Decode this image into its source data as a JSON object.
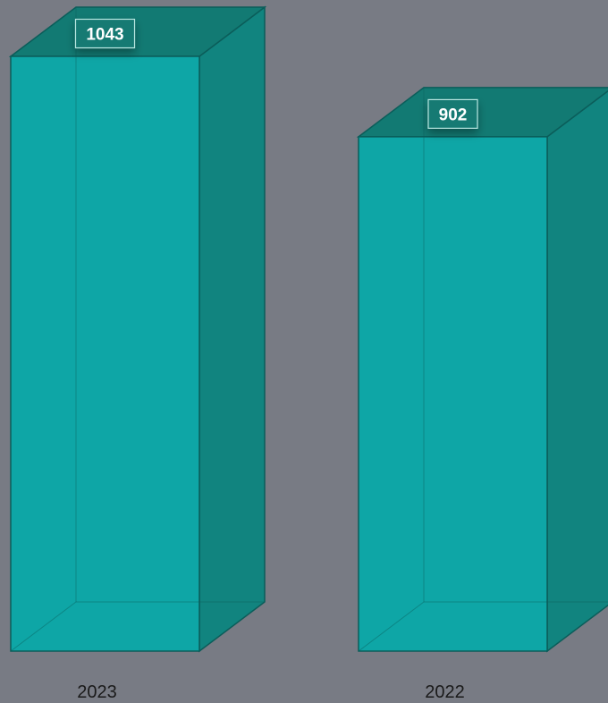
{
  "chart_data": {
    "type": "bar",
    "style": "3d-box",
    "categories": [
      "2023",
      "2022"
    ],
    "values": [
      1043,
      902
    ],
    "title": "",
    "xlabel": "",
    "ylabel": "",
    "ylim": [
      0,
      1043
    ],
    "grid": false,
    "data_labels": true
  },
  "colors": {
    "background": "#787b84",
    "bar_front": "#0ea6a6",
    "bar_side": "#11847f",
    "bar_top": "#127a73",
    "bar_edge": "#0b5d5a",
    "label_box_border": "#b8e6e0"
  }
}
